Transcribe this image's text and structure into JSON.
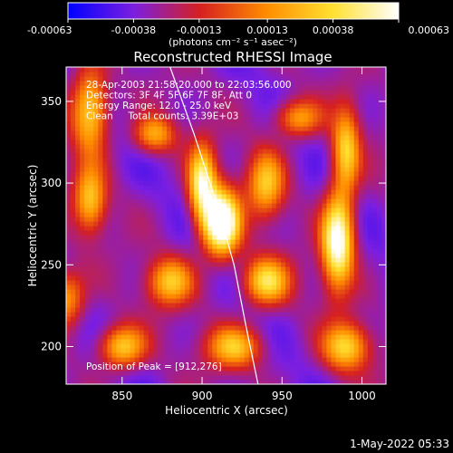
{
  "chart_data": {
    "type": "heatmap",
    "title": "Reconstructed RHESSI Image",
    "xlabel": "Heliocentric X (arcsec)",
    "ylabel": "Heliocentric Y (arcsec)",
    "xlim": [
      815,
      1015
    ],
    "ylim": [
      177,
      371
    ],
    "x_ticks": [
      850,
      900,
      950,
      1000
    ],
    "y_ticks": [
      200,
      250,
      300,
      350
    ],
    "colorbar": {
      "ticks": [
        "-0.00063",
        "-0.00038",
        "-0.00013",
        "0.00013",
        "0.00038",
        "0.00063"
      ],
      "tick_values": [
        -0.00063,
        -0.00038,
        -0.00013,
        0.00013,
        0.00038,
        0.00063
      ],
      "units": "(photons cm⁻² s⁻¹ asec⁻²)",
      "colors": [
        "#0000ff",
        "#7c1fe0",
        "#d62020",
        "#ff8c00",
        "#ffe030",
        "#ffffff"
      ]
    },
    "info_lines": [
      "28-Apr-2003 21:58:20.000 to 22:03:56.000",
      "Detectors: 3F 4F 5F 6F 7F 8F, Att 0",
      "Energy Range: 12.0 - 25.0 keV",
      "Clean     Total counts: 3.39E+03"
    ],
    "peak_label": "Position of Peak = [912,276]",
    "peak": [
      912,
      276
    ],
    "limb_curve": [
      [
        880,
        371
      ],
      [
        895,
        330
      ],
      [
        910,
        285
      ],
      [
        920,
        250
      ],
      [
        928,
        210
      ],
      [
        935,
        177
      ]
    ],
    "sources": [
      {
        "x": 912,
        "y": 276,
        "amp": 1.0,
        "sx": 8,
        "sy": 14
      },
      {
        "x": 900,
        "y": 300,
        "amp": 0.7,
        "sx": 6,
        "sy": 16
      },
      {
        "x": 985,
        "y": 265,
        "amp": 0.85,
        "sx": 7,
        "sy": 20
      },
      {
        "x": 990,
        "y": 320,
        "amp": 0.55,
        "sx": 6,
        "sy": 18
      },
      {
        "x": 830,
        "y": 345,
        "amp": 0.6,
        "sx": 8,
        "sy": 18
      },
      {
        "x": 830,
        "y": 290,
        "amp": 0.5,
        "sx": 7,
        "sy": 14
      },
      {
        "x": 880,
        "y": 240,
        "amp": 0.5,
        "sx": 10,
        "sy": 10
      },
      {
        "x": 940,
        "y": 300,
        "amp": 0.5,
        "sx": 8,
        "sy": 14
      },
      {
        "x": 940,
        "y": 240,
        "amp": 0.6,
        "sx": 10,
        "sy": 10
      },
      {
        "x": 850,
        "y": 200,
        "amp": 0.55,
        "sx": 10,
        "sy": 9
      },
      {
        "x": 920,
        "y": 200,
        "amp": 0.5,
        "sx": 12,
        "sy": 9
      },
      {
        "x": 990,
        "y": 200,
        "amp": 0.55,
        "sx": 10,
        "sy": 10
      },
      {
        "x": 960,
        "y": 340,
        "amp": 0.45,
        "sx": 10,
        "sy": 8
      },
      {
        "x": 870,
        "y": 330,
        "amp": 0.45,
        "sx": 9,
        "sy": 8
      },
      {
        "x": 815,
        "y": 230,
        "amp": 0.45,
        "sx": 8,
        "sy": 12
      }
    ]
  },
  "timestamp": "1-May-2022 05:33"
}
